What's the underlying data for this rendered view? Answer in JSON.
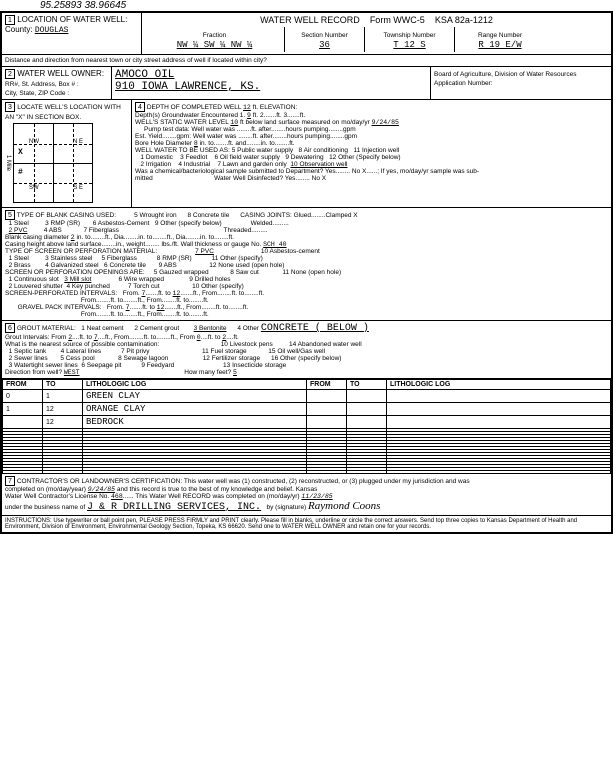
{
  "handwritten_top": "95.25893  38.96645",
  "form_title": "WATER WELL RECORD",
  "form_id": "Form WWC-5",
  "form_ksa": "KSA 82a-1212",
  "s1": {
    "title": "LOCATION OF WATER WELL:",
    "county_label": "County:",
    "county": "DOUGLAS",
    "fraction_label": "Fraction",
    "fraction": "NW ¼ SW ¼ NW ¼",
    "section_label": "Section Number",
    "section": "36",
    "township_label": "Township Number",
    "township": "T 12 S",
    "range_label": "Range Number",
    "range": "R 19 E/W",
    "distance_label": "Distance and direction from nearest town or city street address of well if located within city?"
  },
  "s2": {
    "title": "WATER WELL OWNER:",
    "rr_label": "RR#, St. Address, Box # :",
    "city_label": "City, State, ZIP Code :",
    "owner": "AMOCO OIL",
    "address": "910 IOWA    LAWRENCE, KS.",
    "board": "Board of Agriculture, Division of Water Resources",
    "app_label": "Application Number:"
  },
  "s3": {
    "title": "LOCATE WELL'S LOCATION WITH AN \"X\" IN SECTION BOX.",
    "nw": "NW",
    "ne": "N E",
    "sw": "SW",
    "se": "S E",
    "n": "N",
    "s": "S",
    "e": "E",
    "w": "W",
    "mile": "1 Mile"
  },
  "s4": {
    "depth_label": "DEPTH OF COMPLETED WELL",
    "depth": "12",
    "elev_label": "ft. ELEVATION:",
    "gw_label": "Depth(s) Groundwater Encountered",
    "gw1": "9",
    "static_label": "WELL'S STATIC WATER LEVEL",
    "static": "10",
    "static_suffix": "ft below land surface measured on mo/day/yr",
    "static_date": "9/24/85",
    "pump_label": "Pump test data:",
    "yield_label": "Est. Yield",
    "bore_label": "Bore Hole Diameter",
    "bore": "8",
    "use_label": "WELL WATER TO BE USED AS:",
    "uses": [
      "1 Domestic",
      "2 Irrigation",
      "3 Feedlot",
      "4 Industrial",
      "5 Public water supply",
      "6 Oil field water supply",
      "7 Lawn and garden only",
      "8 Air conditioning",
      "9 Dewatering",
      "10 Observation well",
      "11 Injection well",
      "12 Other (Specify below)"
    ],
    "sample_label": "Was a chemical/bacteriological sample submitted to Department? Yes",
    "sample_no": "No X",
    "disinfect": "Water Well Disinfected? Yes",
    "disinfect_no": "No X"
  },
  "s5": {
    "title": "TYPE OF BLANK CASING USED:",
    "opts1": [
      "1 Steel",
      "2 PVC",
      "3 RMP (SR)",
      "4 ABS",
      "5 Wrought iron",
      "6 Asbestos-Cement",
      "7 Fiberglass",
      "8 Concrete tile",
      "9 Other (specify below)"
    ],
    "joints": "CASING JOINTS: Glued........Clamped X",
    "welded": "Welded.........",
    "threaded": "Threaded.........",
    "blank_dia_label": "Blank casing diameter",
    "blank_dia": "2",
    "gauge_label": "lbs./ft. Wall thickness or gauge No.",
    "gauge": "SCH 40",
    "casing_height_label": "Casing height above land surface",
    "screen_title": "TYPE OF SCREEN OR PERFORATION MATERIAL:",
    "screen_sel": "7 PVC",
    "screen_opts": [
      "1 Steel",
      "2 Brass",
      "3 Stainless steel",
      "4 Galvanized steel",
      "5 Fiberglass",
      "6 Concrete tile",
      "7 PVC",
      "8 RMP (SR)",
      "9 ABS",
      "10 Asbestos-cement",
      "11 Other (specify)",
      "12 None used (open hole)"
    ],
    "openings_title": "SCREEN OR PERFORATION OPENINGS ARE:",
    "open_opts": [
      "1 Continuous slot",
      "2 Louvered shutter",
      "3 Mill slot",
      "4 Key punched",
      "5 Gauzed wrapped",
      "6 Wire wrapped",
      "7 Torch cut",
      "8 Saw cut",
      "9 Drilled holes",
      "10 Other (specify)",
      "11 None (open hole)"
    ],
    "perf_label": "SCREEN-PERFORATED INTERVALS:",
    "perf_from": "7",
    "perf_to": "12",
    "gravel_label": "GRAVEL PACK INTERVALS:",
    "gravel_from": "7",
    "gravel_to": "12"
  },
  "s6": {
    "title": "GROUT MATERIAL:",
    "opts": [
      "1 Neat cement",
      "2 Cement grout",
      "3 Bentonite"
    ],
    "other": "4 Other CONCRETE ( BELOW )",
    "grout_label": "Grout Intervals: From",
    "grout_from": "2",
    "grout_to": "7",
    "grout2_from": "0",
    "grout2_to": "2",
    "contam_label": "What is the nearest source of possible contamination:",
    "contam_opts": [
      "1 Septic tank",
      "2 Sewer lines",
      "3 Watertight sewer lines",
      "4 Lateral lines",
      "5 Cess pool",
      "6 Seepage pit",
      "7 Pit privy",
      "8 Sewage lagoon",
      "9 Feedyard",
      "10 Livestock pens",
      "11 Fuel storage",
      "12 Fertilizer storage",
      "13 Insecticide storage",
      "14 Abandoned water well",
      "15 Oil well/Gas well",
      "16 Other (specify below)"
    ],
    "dir_label": "Direction from well?",
    "dir": "WEST",
    "feet_label": "How many feet?",
    "feet": "5"
  },
  "log": {
    "headers": [
      "FROM",
      "TO",
      "LITHOLOGIC LOG",
      "FROM",
      "TO",
      "LITHOLOGIC LOG"
    ],
    "rows": [
      [
        "0",
        "1",
        "GREEN CLAY",
        "",
        "",
        ""
      ],
      [
        "1",
        "12",
        "ORANGE CLAY",
        "",
        "",
        ""
      ],
      [
        "",
        "12",
        "BEDROCK",
        "",
        "",
        ""
      ]
    ]
  },
  "s7": {
    "cert": "CONTRACTOR'S OR LANDOWNER'S CERTIFICATION: This water well was (1) constructed, (2) reconstructed, or (3) plugged under my jurisdiction and was",
    "completed_label": "completed on (mo/day/year)",
    "completed": "9/24/85",
    "cert2": "and this record is true to the best of my knowledge and belief. Kansas",
    "license_label": "Water Well Contractor's License No.",
    "license": "468",
    "rec_label": "This Water Well RECORD was completed on (mo/day/yr)",
    "rec_date": "11/23/85",
    "business_label": "under the business name of",
    "business": "J & R DRILLING SERVICES, INC.",
    "sig_label": "by (signature)",
    "sig": "Raymond Coons",
    "instructions": "INSTRUCTIONS: Use typewriter or ball point pen, PLEASE PRESS FIRMLY and PRINT clearly. Please fill in blanks, underline or circle the correct answers. Send top three copies to Kansas Department of Health and Environment, Division of Environment, Environmental Geology Section, Topeka, KS 66620. Send one to WATER WELL OWNER and retain one for your records."
  }
}
